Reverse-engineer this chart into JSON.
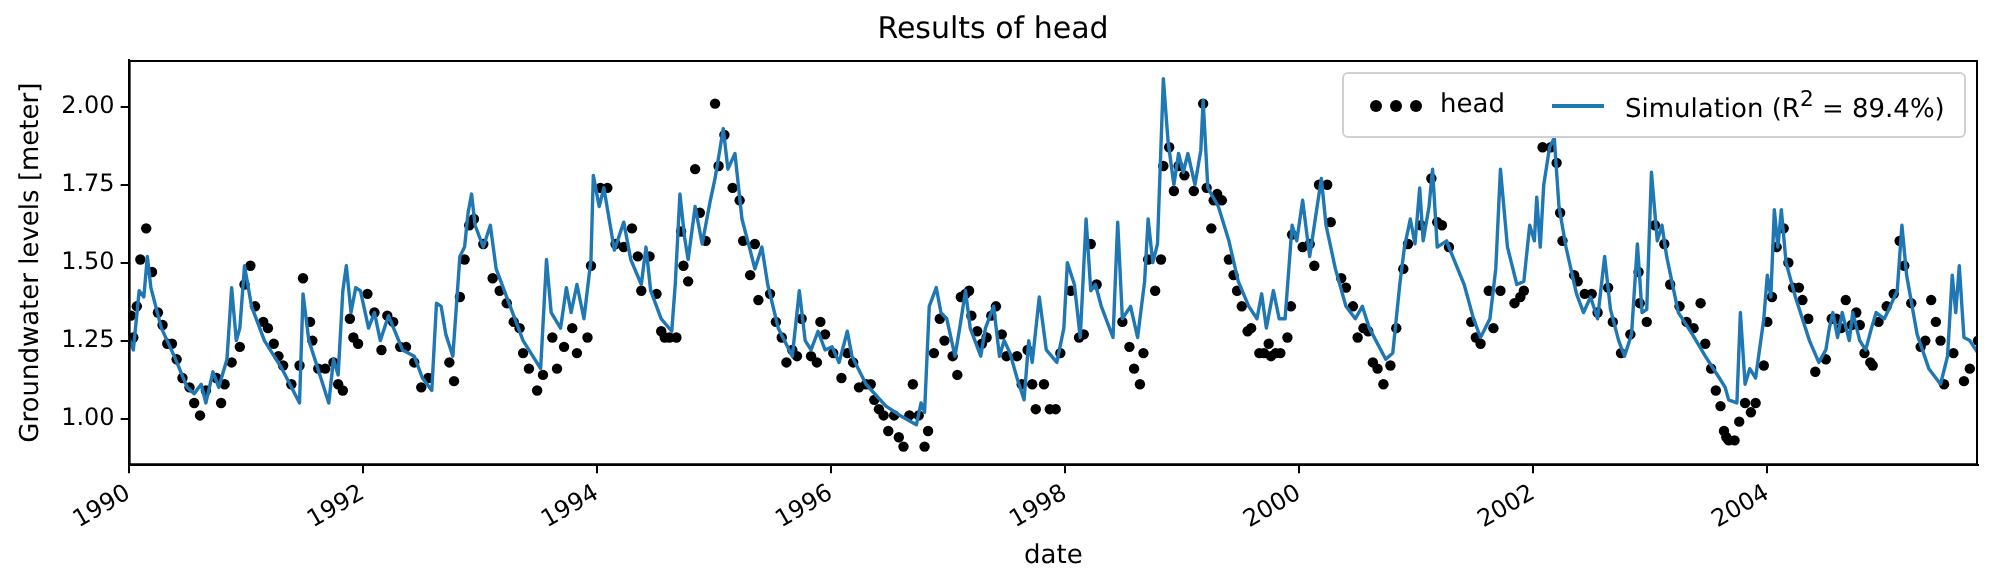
{
  "chart_data": {
    "type": "line",
    "title": "Results of head",
    "xlabel": "date",
    "ylabel": "Groundwater levels [meter]",
    "xlim": [
      1990,
      2005.8
    ],
    "xticks": [
      1990,
      1992,
      1994,
      1996,
      1998,
      2000,
      2002,
      2004
    ],
    "ylim": [
      0.85,
      2.15
    ],
    "yticks": [
      {
        "value": 1,
        "label": "1.00"
      },
      {
        "value": 1.25,
        "label": "1.25"
      },
      {
        "value": 1.5,
        "label": "1.50"
      },
      {
        "value": 1.75,
        "label": "1.75"
      },
      {
        "value": 2,
        "label": "2.00"
      }
    ],
    "grid": false,
    "legend": "top right",
    "series": [
      {
        "name": "head",
        "type": "scatter",
        "marker": "circle",
        "color": "#000000",
        "x": [
          1990.02,
          1990.04,
          1990.07,
          1990.1,
          1990.15,
          1990.2,
          1990.25,
          1990.29,
          1990.33,
          1990.37,
          1990.41,
          1990.46,
          1990.52,
          1990.56,
          1990.61,
          1990.66,
          1990.75,
          1990.79,
          1990.82,
          1990.88,
          1990.95,
          1990.99,
          1991.04,
          1991.08,
          1991.15,
          1991.19,
          1991.24,
          1991.28,
          1991.32,
          1991.39,
          1991.46,
          1991.49,
          1991.55,
          1991.57,
          1991.62,
          1991.68,
          1991.75,
          1991.79,
          1991.83,
          1991.89,
          1991.92,
          1991.96,
          1992.04,
          1992.1,
          1992.16,
          1992.21,
          1992.26,
          1992.32,
          1992.37,
          1992.44,
          1992.5,
          1992.56,
          1992.74,
          1992.78,
          1992.83,
          1992.87,
          1992.91,
          1992.95,
          1993.03,
          1993.11,
          1993.17,
          1993.23,
          1993.29,
          1993.34,
          1993.37,
          1993.42,
          1993.49,
          1993.54,
          1993.62,
          1993.66,
          1993.72,
          1993.79,
          1993.83,
          1993.92,
          1993.95,
          1994.03,
          1994.09,
          1994.16,
          1994.23,
          1994.3,
          1994.35,
          1994.38,
          1994.45,
          1994.51,
          1994.55,
          1994.58,
          1994.62,
          1994.68,
          1994.72,
          1994.74,
          1994.78,
          1994.84,
          1994.88,
          1994.93,
          1995.01,
          1995.04,
          1995.09,
          1995.16,
          1995.22,
          1995.25,
          1995.31,
          1995.35,
          1995.38,
          1995.48,
          1995.53,
          1995.58,
          1995.62,
          1995.67,
          1995.71,
          1995.75,
          1995.83,
          1995.88,
          1995.91,
          1995.95,
          1996.02,
          1996.09,
          1996.14,
          1996.19,
          1996.24,
          1996.3,
          1996.34,
          1996.37,
          1996.41,
          1996.45,
          1996.49,
          1996.54,
          1996.58,
          1996.62,
          1996.67,
          1996.7,
          1996.75,
          1996.8,
          1996.83,
          1996.88,
          1996.93,
          1996.97,
          1997.04,
          1997.08,
          1997.11,
          1997.15,
          1997.18,
          1997.2,
          1997.25,
          1997.29,
          1997.33,
          1997.37,
          1997.41,
          1997.46,
          1997.5,
          1997.59,
          1997.63,
          1997.68,
          1997.72,
          1997.75,
          1997.82,
          1997.87,
          1997.92,
          1997.96,
          1998.05,
          1998.12,
          1998.16,
          1998.22,
          1998.27,
          1998.49,
          1998.55,
          1998.59,
          1998.64,
          1998.67,
          1998.71,
          1998.77,
          1998.82,
          1998.84,
          1998.89,
          1998.93,
          1998.97,
          1999.02,
          1999.1,
          1999.18,
          1999.21,
          1999.25,
          1999.27,
          1999.3,
          1999.34,
          1999.4,
          1999.44,
          1999.47,
          1999.51,
          1999.56,
          1999.59,
          1999.66,
          1999.7,
          1999.74,
          1999.76,
          1999.8,
          1999.84,
          1999.9,
          1999.93,
          1999.94,
          2000.03,
          2000.09,
          2000.13,
          2000.17,
          2000.24,
          2000.27,
          2000.36,
          2000.4,
          2000.46,
          2000.5,
          2000.55,
          2000.59,
          2000.63,
          2000.67,
          2000.72,
          2000.78,
          2000.83,
          2000.89,
          2000.93,
          2001.04,
          2001.13,
          2001.18,
          2001.22,
          2001.28,
          2001.47,
          2001.51,
          2001.55,
          2001.62,
          2001.66,
          2001.72,
          2001.84,
          2001.89,
          2001.92,
          2002.08,
          2002.15,
          2002.2,
          2002.23,
          2002.25,
          2002.35,
          2002.38,
          2002.44,
          2002.5,
          2002.55,
          2002.64,
          2002.68,
          2002.75,
          2002.83,
          2002.9,
          2002.91,
          2002.97,
          2003.04,
          2003.12,
          2003.17,
          2003.25,
          2003.31,
          2003.37,
          2003.43,
          2003.47,
          2003.52,
          2003.56,
          2003.6,
          2003.63,
          2003.65,
          2003.67,
          2003.72,
          2003.76,
          2003.81,
          2003.86,
          2003.9,
          2003.97,
          2004.0,
          2004.04,
          2004.08,
          2004.14,
          2004.18,
          2004.22,
          2004.27,
          2004.3,
          2004.35,
          2004.41,
          2004.5,
          2004.55,
          2004.59,
          2004.63,
          2004.67,
          2004.72,
          2004.76,
          2004.79,
          2004.83,
          2004.88,
          2004.9,
          2004.95,
          2005.02,
          2005.08,
          2005.13,
          2005.17,
          2005.23,
          2005.31,
          2005.35,
          2005.4,
          2005.44,
          2005.48,
          2005.51,
          2005.59,
          2005.68,
          2005.73,
          2005.8
        ],
        "values": [
          1.33,
          1.26,
          1.36,
          1.51,
          1.61,
          1.47,
          1.34,
          1.3,
          1.24,
          1.24,
          1.19,
          1.13,
          1.1,
          1.05,
          1.01,
          1.09,
          1.13,
          1.05,
          1.11,
          1.18,
          1.23,
          1.43,
          1.49,
          1.36,
          1.31,
          1.29,
          1.24,
          1.2,
          1.17,
          1.11,
          1.17,
          1.45,
          1.31,
          1.25,
          1.16,
          1.16,
          1.18,
          1.11,
          1.09,
          1.32,
          1.26,
          1.24,
          1.4,
          1.34,
          1.22,
          1.33,
          1.31,
          1.23,
          1.23,
          1.18,
          1.1,
          1.13,
          1.18,
          1.12,
          1.39,
          1.51,
          1.62,
          1.64,
          1.56,
          1.45,
          1.41,
          1.37,
          1.31,
          1.29,
          1.21,
          1.16,
          1.09,
          1.14,
          1.26,
          1.16,
          1.23,
          1.29,
          1.21,
          1.26,
          1.49,
          1.74,
          1.74,
          1.56,
          1.55,
          1.61,
          1.52,
          1.41,
          1.52,
          1.4,
          1.28,
          1.26,
          1.26,
          1.26,
          1.6,
          1.49,
          1.44,
          1.8,
          1.66,
          1.57,
          2.01,
          1.81,
          1.91,
          1.74,
          1.7,
          1.57,
          1.46,
          1.56,
          1.38,
          1.4,
          1.31,
          1.26,
          1.18,
          1.22,
          1.2,
          1.32,
          1.2,
          1.18,
          1.31,
          1.27,
          1.21,
          1.13,
          1.21,
          1.18,
          1.1,
          1.11,
          1.11,
          1.06,
          1.03,
          1.01,
          0.96,
          1.01,
          0.94,
          0.91,
          1.01,
          1.11,
          1.01,
          0.91,
          0.96,
          1.21,
          1.32,
          1.25,
          1.2,
          1.14,
          1.39,
          1.4,
          1.41,
          1.33,
          1.28,
          1.24,
          1.26,
          1.33,
          1.36,
          1.27,
          1.2,
          1.2,
          1.11,
          1.22,
          1.11,
          1.03,
          1.11,
          1.03,
          1.03,
          1.21,
          1.41,
          1.26,
          1.27,
          1.56,
          1.43,
          1.31,
          1.23,
          1.16,
          1.11,
          1.21,
          1.51,
          1.41,
          1.51,
          1.81,
          1.87,
          1.73,
          1.81,
          1.78,
          1.73,
          2.01,
          1.74,
          1.61,
          1.7,
          1.72,
          1.7,
          1.51,
          1.46,
          1.41,
          1.36,
          1.28,
          1.29,
          1.21,
          1.21,
          1.24,
          1.2,
          1.21,
          1.21,
          1.26,
          1.36,
          1.59,
          1.55,
          1.56,
          1.49,
          1.75,
          1.75,
          1.63,
          1.45,
          1.42,
          1.36,
          1.26,
          1.29,
          1.28,
          1.18,
          1.16,
          1.11,
          1.17,
          1.29,
          1.48,
          1.56,
          1.62,
          1.77,
          1.63,
          1.62,
          1.55,
          1.31,
          1.26,
          1.24,
          1.41,
          1.29,
          1.41,
          1.37,
          1.39,
          1.41,
          1.87,
          1.87,
          1.82,
          1.66,
          1.57,
          1.46,
          1.44,
          1.4,
          1.4,
          1.34,
          1.42,
          1.31,
          1.21,
          1.27,
          1.47,
          1.37,
          1.31,
          1.62,
          1.56,
          1.43,
          1.36,
          1.31,
          1.29,
          1.37,
          1.24,
          1.16,
          1.09,
          1.04,
          0.96,
          0.94,
          0.93,
          0.93,
          0.99,
          1.05,
          1.02,
          1.05,
          1.17,
          1.31,
          1.39,
          1.55,
          1.61,
          1.5,
          1.42,
          1.42,
          1.38,
          1.32,
          1.15,
          1.19,
          1.32,
          1.32,
          1.29,
          1.38,
          1.3,
          1.34,
          1.3,
          1.21,
          1.18,
          1.17,
          1.31,
          1.36,
          1.4,
          1.57,
          1.49,
          1.37,
          1.23,
          1.25,
          1.38,
          1.31,
          1.25,
          1.11,
          1.21,
          1.12,
          1.16,
          1.25
        ]
      },
      {
        "name": "Simulation (R$^{2}$ = 89.4%)",
        "color": "#1f77b4",
        "x": [
          1990.0,
          1990.04,
          1990.09,
          1990.13,
          1990.16,
          1990.19,
          1990.28,
          1990.39,
          1990.5,
          1990.56,
          1990.62,
          1990.66,
          1990.72,
          1990.77,
          1990.84,
          1990.88,
          1990.92,
          1990.95,
          1990.99,
          1991.05,
          1991.16,
          1991.31,
          1991.46,
          1991.49,
          1991.54,
          1991.71,
          1991.75,
          1991.79,
          1991.83,
          1991.86,
          1991.9,
          1991.94,
          1991.98,
          1992.05,
          1992.1,
          1992.15,
          1992.22,
          1992.34,
          1992.44,
          1992.51,
          1992.59,
          1992.63,
          1992.67,
          1992.71,
          1992.77,
          1992.83,
          1992.87,
          1992.9,
          1992.93,
          1992.96,
          1993.03,
          1993.09,
          1993.14,
          1993.26,
          1993.37,
          1993.52,
          1993.57,
          1993.61,
          1993.69,
          1993.74,
          1993.78,
          1993.83,
          1993.89,
          1993.95,
          1993.97,
          1994.02,
          1994.06,
          1994.15,
          1994.23,
          1994.29,
          1994.38,
          1994.42,
          1994.46,
          1994.55,
          1994.64,
          1994.67,
          1994.71,
          1994.75,
          1994.78,
          1994.84,
          1994.9,
          1994.97,
          1995.01,
          1995.05,
          1995.08,
          1995.12,
          1995.18,
          1995.24,
          1995.31,
          1995.35,
          1995.41,
          1995.46,
          1995.55,
          1995.67,
          1995.73,
          1995.78,
          1995.83,
          1995.89,
          1995.95,
          1996.01,
          1996.07,
          1996.14,
          1996.18,
          1996.3,
          1996.47,
          1996.59,
          1996.73,
          1996.77,
          1996.8,
          1996.84,
          1996.9,
          1996.94,
          1996.99,
          1997.06,
          1997.1,
          1997.15,
          1997.19,
          1997.28,
          1997.32,
          1997.39,
          1997.44,
          1997.48,
          1997.53,
          1997.59,
          1997.65,
          1997.69,
          1997.72,
          1997.78,
          1997.84,
          1997.93,
          1997.99,
          1998.02,
          1998.08,
          1998.13,
          1998.18,
          1998.22,
          1998.26,
          1998.31,
          1998.41,
          1998.45,
          1998.49,
          1998.56,
          1998.62,
          1998.68,
          1998.71,
          1998.75,
          1998.79,
          1998.84,
          1998.88,
          1998.93,
          1998.97,
          1999.01,
          1999.05,
          1999.11,
          1999.16,
          1999.18,
          1999.22,
          1999.31,
          1999.4,
          1999.48,
          1999.57,
          1999.64,
          1999.68,
          1999.72,
          1999.78,
          1999.83,
          1999.88,
          1999.94,
          1999.98,
          2000.03,
          2000.09,
          2000.13,
          2000.19,
          2000.23,
          2000.31,
          2000.4,
          2000.48,
          2000.54,
          2000.6,
          2000.74,
          2000.8,
          2000.86,
          2000.9,
          2000.95,
          2000.99,
          2001.03,
          2001.06,
          2001.11,
          2001.14,
          2001.18,
          2001.26,
          2001.29,
          2001.41,
          2001.49,
          2001.55,
          2001.63,
          2001.68,
          2001.72,
          2001.78,
          2001.86,
          2001.92,
          2001.97,
          2002.01,
          2002.03,
          2002.06,
          2002.09,
          2002.14,
          2002.18,
          2002.22,
          2002.28,
          2002.37,
          2002.43,
          2002.49,
          2002.55,
          2002.61,
          2002.66,
          2002.73,
          2002.78,
          2002.84,
          2002.89,
          2002.93,
          2002.97,
          2003.01,
          2003.06,
          2003.1,
          2003.14,
          2003.24,
          2003.36,
          2003.47,
          2003.59,
          2003.64,
          2003.67,
          2003.74,
          2003.77,
          2003.81,
          2003.85,
          2003.9,
          2003.97,
          2004.0,
          2004.03,
          2004.06,
          2004.09,
          2004.12,
          2004.16,
          2004.24,
          2004.36,
          2004.44,
          2004.5,
          2004.53,
          2004.56,
          2004.6,
          2004.64,
          2004.7,
          2004.73,
          2004.79,
          2004.84,
          2004.89,
          2004.93,
          2005.0,
          2005.05,
          2005.11,
          2005.15,
          2005.19,
          2005.28,
          2005.38,
          2005.48,
          2005.54,
          2005.58,
          2005.61,
          2005.64,
          2005.68,
          2005.73,
          2005.8
        ],
        "values": [
          1.26,
          1.22,
          1.41,
          1.39,
          1.52,
          1.42,
          1.29,
          1.2,
          1.1,
          1.08,
          1.11,
          1.05,
          1.15,
          1.1,
          1.19,
          1.42,
          1.25,
          1.29,
          1.49,
          1.36,
          1.25,
          1.16,
          1.05,
          1.4,
          1.25,
          1.05,
          1.19,
          1.14,
          1.41,
          1.49,
          1.34,
          1.42,
          1.41,
          1.29,
          1.34,
          1.25,
          1.33,
          1.22,
          1.2,
          1.13,
          1.09,
          1.37,
          1.36,
          1.27,
          1.2,
          1.52,
          1.55,
          1.66,
          1.72,
          1.62,
          1.55,
          1.62,
          1.48,
          1.36,
          1.25,
          1.16,
          1.51,
          1.34,
          1.29,
          1.42,
          1.34,
          1.43,
          1.32,
          1.51,
          1.78,
          1.68,
          1.74,
          1.54,
          1.63,
          1.51,
          1.43,
          1.55,
          1.41,
          1.32,
          1.28,
          1.43,
          1.72,
          1.58,
          1.51,
          1.68,
          1.56,
          1.7,
          1.77,
          1.86,
          1.93,
          1.8,
          1.85,
          1.64,
          1.54,
          1.48,
          1.55,
          1.43,
          1.29,
          1.2,
          1.41,
          1.25,
          1.22,
          1.28,
          1.22,
          1.23,
          1.18,
          1.28,
          1.2,
          1.11,
          1.04,
          1.01,
          0.98,
          1.05,
          1.02,
          1.36,
          1.42,
          1.34,
          1.32,
          1.2,
          1.29,
          1.41,
          1.29,
          1.2,
          1.29,
          1.36,
          1.2,
          1.25,
          1.21,
          1.13,
          1.06,
          1.25,
          1.18,
          1.39,
          1.22,
          1.18,
          1.29,
          1.5,
          1.43,
          1.26,
          1.64,
          1.41,
          1.43,
          1.36,
          1.26,
          1.63,
          1.32,
          1.36,
          1.26,
          1.44,
          1.64,
          1.5,
          1.56,
          2.09,
          1.89,
          1.75,
          1.85,
          1.79,
          1.85,
          1.75,
          1.86,
          2.02,
          1.74,
          1.68,
          1.57,
          1.44,
          1.36,
          1.32,
          1.4,
          1.29,
          1.41,
          1.32,
          1.32,
          1.62,
          1.57,
          1.7,
          1.52,
          1.62,
          1.77,
          1.62,
          1.48,
          1.36,
          1.32,
          1.36,
          1.29,
          1.19,
          1.21,
          1.43,
          1.55,
          1.64,
          1.56,
          1.74,
          1.57,
          1.68,
          1.8,
          1.55,
          1.57,
          1.54,
          1.43,
          1.32,
          1.26,
          1.32,
          1.48,
          1.8,
          1.55,
          1.43,
          1.44,
          1.62,
          1.57,
          1.71,
          1.55,
          1.75,
          1.87,
          1.9,
          1.68,
          1.55,
          1.4,
          1.34,
          1.39,
          1.32,
          1.52,
          1.35,
          1.25,
          1.2,
          1.27,
          1.56,
          1.34,
          1.35,
          1.79,
          1.57,
          1.62,
          1.52,
          1.34,
          1.27,
          1.2,
          1.13,
          1.1,
          1.06,
          1.05,
          1.34,
          1.11,
          1.16,
          1.13,
          1.32,
          1.46,
          1.39,
          1.67,
          1.55,
          1.67,
          1.5,
          1.39,
          1.25,
          1.18,
          1.22,
          1.29,
          1.34,
          1.26,
          1.34,
          1.25,
          1.34,
          1.25,
          1.22,
          1.29,
          1.34,
          1.32,
          1.36,
          1.41,
          1.62,
          1.46,
          1.27,
          1.16,
          1.11,
          1.2,
          1.46,
          1.34,
          1.49,
          1.26,
          1.25,
          1.21
        ]
      }
    ]
  }
}
